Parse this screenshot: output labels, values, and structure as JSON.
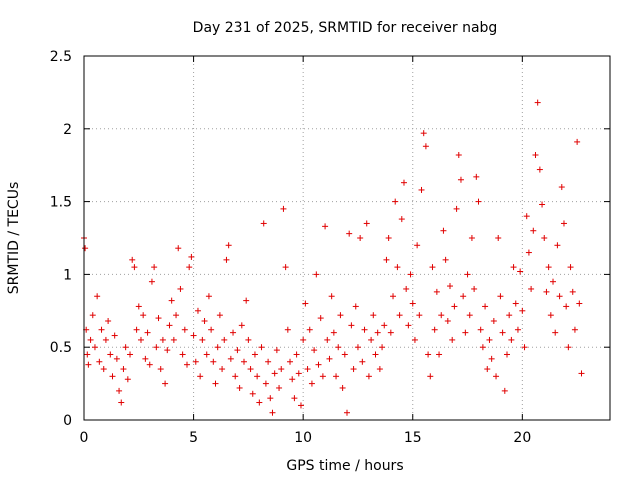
{
  "chart_data": {
    "type": "scatter",
    "title": "Day 231 of 2025, SRMTID for receiver nabg",
    "xlabel": "GPS time / hours",
    "ylabel": "SRMTID / TECUs",
    "xlim": [
      0,
      24
    ],
    "ylim": [
      0,
      2.5
    ],
    "x_ticks": [
      0,
      5,
      10,
      15,
      20
    ],
    "x_tick_labels": [
      "0",
      "5",
      "10",
      "15",
      "20"
    ],
    "y_ticks": [
      0,
      0.5,
      1,
      1.5,
      2,
      2.5
    ],
    "y_tick_labels": [
      "0",
      "0.5",
      "1",
      "1.5",
      "2",
      "2.5"
    ],
    "grid": true,
    "marker": "+",
    "point_color": "#e00000",
    "series": [
      {
        "name": "SRMTID",
        "points": [
          [
            0.0,
            1.25
          ],
          [
            0.05,
            1.18
          ],
          [
            0.1,
            0.62
          ],
          [
            0.15,
            0.45
          ],
          [
            0.2,
            0.38
          ],
          [
            0.3,
            0.55
          ],
          [
            0.4,
            0.72
          ],
          [
            0.5,
            0.5
          ],
          [
            0.6,
            0.85
          ],
          [
            0.7,
            0.4
          ],
          [
            0.8,
            0.62
          ],
          [
            0.9,
            0.35
          ],
          [
            1.0,
            0.55
          ],
          [
            1.1,
            0.68
          ],
          [
            1.2,
            0.45
          ],
          [
            1.3,
            0.3
          ],
          [
            1.4,
            0.58
          ],
          [
            1.5,
            0.42
          ],
          [
            1.6,
            0.2
          ],
          [
            1.7,
            0.12
          ],
          [
            1.8,
            0.35
          ],
          [
            1.9,
            0.5
          ],
          [
            2.0,
            0.28
          ],
          [
            2.1,
            0.45
          ],
          [
            2.2,
            1.1
          ],
          [
            2.3,
            1.05
          ],
          [
            2.4,
            0.62
          ],
          [
            2.5,
            0.78
          ],
          [
            2.6,
            0.55
          ],
          [
            2.7,
            0.72
          ],
          [
            2.8,
            0.42
          ],
          [
            2.9,
            0.6
          ],
          [
            3.0,
            0.38
          ],
          [
            3.1,
            0.95
          ],
          [
            3.2,
            1.05
          ],
          [
            3.3,
            0.5
          ],
          [
            3.4,
            0.7
          ],
          [
            3.5,
            0.35
          ],
          [
            3.6,
            0.55
          ],
          [
            3.7,
            0.25
          ],
          [
            3.8,
            0.48
          ],
          [
            3.9,
            0.65
          ],
          [
            4.0,
            0.82
          ],
          [
            4.1,
            0.55
          ],
          [
            4.2,
            0.72
          ],
          [
            4.3,
            1.18
          ],
          [
            4.4,
            0.9
          ],
          [
            4.5,
            0.45
          ],
          [
            4.6,
            0.62
          ],
          [
            4.7,
            0.38
          ],
          [
            4.8,
            1.05
          ],
          [
            4.9,
            1.12
          ],
          [
            5.0,
            0.58
          ],
          [
            5.1,
            0.4
          ],
          [
            5.2,
            0.75
          ],
          [
            5.3,
            0.3
          ],
          [
            5.4,
            0.55
          ],
          [
            5.5,
            0.68
          ],
          [
            5.6,
            0.45
          ],
          [
            5.7,
            0.85
          ],
          [
            5.8,
            0.62
          ],
          [
            5.9,
            0.4
          ],
          [
            6.0,
            0.25
          ],
          [
            6.1,
            0.5
          ],
          [
            6.2,
            0.72
          ],
          [
            6.3,
            0.35
          ],
          [
            6.4,
            0.55
          ],
          [
            6.5,
            1.1
          ],
          [
            6.6,
            1.2
          ],
          [
            6.7,
            0.42
          ],
          [
            6.8,
            0.6
          ],
          [
            6.9,
            0.3
          ],
          [
            7.0,
            0.48
          ],
          [
            7.1,
            0.22
          ],
          [
            7.2,
            0.65
          ],
          [
            7.3,
            0.4
          ],
          [
            7.4,
            0.82
          ],
          [
            7.5,
            0.55
          ],
          [
            7.6,
            0.35
          ],
          [
            7.7,
            0.18
          ],
          [
            7.8,
            0.45
          ],
          [
            7.9,
            0.3
          ],
          [
            8.0,
            0.12
          ],
          [
            8.1,
            0.5
          ],
          [
            8.2,
            1.35
          ],
          [
            8.3,
            0.25
          ],
          [
            8.4,
            0.4
          ],
          [
            8.5,
            0.15
          ],
          [
            8.6,
            0.05
          ],
          [
            8.7,
            0.32
          ],
          [
            8.8,
            0.48
          ],
          [
            8.9,
            0.22
          ],
          [
            9.0,
            0.35
          ],
          [
            9.1,
            1.45
          ],
          [
            9.2,
            1.05
          ],
          [
            9.3,
            0.62
          ],
          [
            9.4,
            0.4
          ],
          [
            9.5,
            0.28
          ],
          [
            9.6,
            0.15
          ],
          [
            9.7,
            0.45
          ],
          [
            9.8,
            0.32
          ],
          [
            9.9,
            0.1
          ],
          [
            10.0,
            0.55
          ],
          [
            10.1,
            0.8
          ],
          [
            10.2,
            0.35
          ],
          [
            10.3,
            0.62
          ],
          [
            10.4,
            0.25
          ],
          [
            10.5,
            0.48
          ],
          [
            10.6,
            1.0
          ],
          [
            10.7,
            0.38
          ],
          [
            10.8,
            0.7
          ],
          [
            10.9,
            0.3
          ],
          [
            11.0,
            1.33
          ],
          [
            11.1,
            0.55
          ],
          [
            11.2,
            0.42
          ],
          [
            11.3,
            0.85
          ],
          [
            11.4,
            0.6
          ],
          [
            11.5,
            0.3
          ],
          [
            11.6,
            0.5
          ],
          [
            11.7,
            0.72
          ],
          [
            11.8,
            0.22
          ],
          [
            11.9,
            0.45
          ],
          [
            12.0,
            0.05
          ],
          [
            12.1,
            1.28
          ],
          [
            12.2,
            0.65
          ],
          [
            12.3,
            0.35
          ],
          [
            12.4,
            0.78
          ],
          [
            12.5,
            0.5
          ],
          [
            12.6,
            1.25
          ],
          [
            12.7,
            0.4
          ],
          [
            12.8,
            0.62
          ],
          [
            12.9,
            1.35
          ],
          [
            13.0,
            0.3
          ],
          [
            13.1,
            0.55
          ],
          [
            13.2,
            0.72
          ],
          [
            13.3,
            0.45
          ],
          [
            13.4,
            0.6
          ],
          [
            13.5,
            0.35
          ],
          [
            13.6,
            0.5
          ],
          [
            13.7,
            0.65
          ],
          [
            13.8,
            1.1
          ],
          [
            13.9,
            1.25
          ],
          [
            14.0,
            0.6
          ],
          [
            14.1,
            0.85
          ],
          [
            14.2,
            1.5
          ],
          [
            14.3,
            1.05
          ],
          [
            14.4,
            0.72
          ],
          [
            14.5,
            1.38
          ],
          [
            14.6,
            1.63
          ],
          [
            14.7,
            0.9
          ],
          [
            14.8,
            0.65
          ],
          [
            14.9,
            1.0
          ],
          [
            15.0,
            0.8
          ],
          [
            15.1,
            0.55
          ],
          [
            15.2,
            1.2
          ],
          [
            15.3,
            0.72
          ],
          [
            15.4,
            1.58
          ],
          [
            15.5,
            1.97
          ],
          [
            15.6,
            1.88
          ],
          [
            15.7,
            0.45
          ],
          [
            15.8,
            0.3
          ],
          [
            15.9,
            1.05
          ],
          [
            16.0,
            0.62
          ],
          [
            16.1,
            0.88
          ],
          [
            16.2,
            0.45
          ],
          [
            16.3,
            0.72
          ],
          [
            16.4,
            1.3
          ],
          [
            16.5,
            1.1
          ],
          [
            16.6,
            0.68
          ],
          [
            16.7,
            0.92
          ],
          [
            16.8,
            0.55
          ],
          [
            16.9,
            0.78
          ],
          [
            17.0,
            1.45
          ],
          [
            17.1,
            1.82
          ],
          [
            17.2,
            1.65
          ],
          [
            17.3,
            0.85
          ],
          [
            17.4,
            0.6
          ],
          [
            17.5,
            1.0
          ],
          [
            17.6,
            0.72
          ],
          [
            17.7,
            1.25
          ],
          [
            17.8,
            0.9
          ],
          [
            17.9,
            1.67
          ],
          [
            18.0,
            1.5
          ],
          [
            18.1,
            0.62
          ],
          [
            18.2,
            0.5
          ],
          [
            18.3,
            0.78
          ],
          [
            18.4,
            0.35
          ],
          [
            18.5,
            0.55
          ],
          [
            18.6,
            0.42
          ],
          [
            18.7,
            0.68
          ],
          [
            18.8,
            0.3
          ],
          [
            18.9,
            1.25
          ],
          [
            19.0,
            0.85
          ],
          [
            19.1,
            0.6
          ],
          [
            19.2,
            0.2
          ],
          [
            19.3,
            0.45
          ],
          [
            19.4,
            0.72
          ],
          [
            19.5,
            0.55
          ],
          [
            19.6,
            1.05
          ],
          [
            19.7,
            0.8
          ],
          [
            19.8,
            0.62
          ],
          [
            19.9,
            1.02
          ],
          [
            20.0,
            0.75
          ],
          [
            20.1,
            0.5
          ],
          [
            20.2,
            1.4
          ],
          [
            20.3,
            1.15
          ],
          [
            20.4,
            0.9
          ],
          [
            20.5,
            1.3
          ],
          [
            20.6,
            1.82
          ],
          [
            20.7,
            2.18
          ],
          [
            20.8,
            1.72
          ],
          [
            20.9,
            1.48
          ],
          [
            21.0,
            1.25
          ],
          [
            21.1,
            0.88
          ],
          [
            21.2,
            1.05
          ],
          [
            21.3,
            0.72
          ],
          [
            21.4,
            0.95
          ],
          [
            21.5,
            0.6
          ],
          [
            21.6,
            1.2
          ],
          [
            21.7,
            0.85
          ],
          [
            21.8,
            1.6
          ],
          [
            21.9,
            1.35
          ],
          [
            22.0,
            0.78
          ],
          [
            22.1,
            0.5
          ],
          [
            22.2,
            1.05
          ],
          [
            22.3,
            0.88
          ],
          [
            22.4,
            0.62
          ],
          [
            22.5,
            1.91
          ],
          [
            22.6,
            0.8
          ],
          [
            22.7,
            0.32
          ]
        ]
      }
    ]
  }
}
